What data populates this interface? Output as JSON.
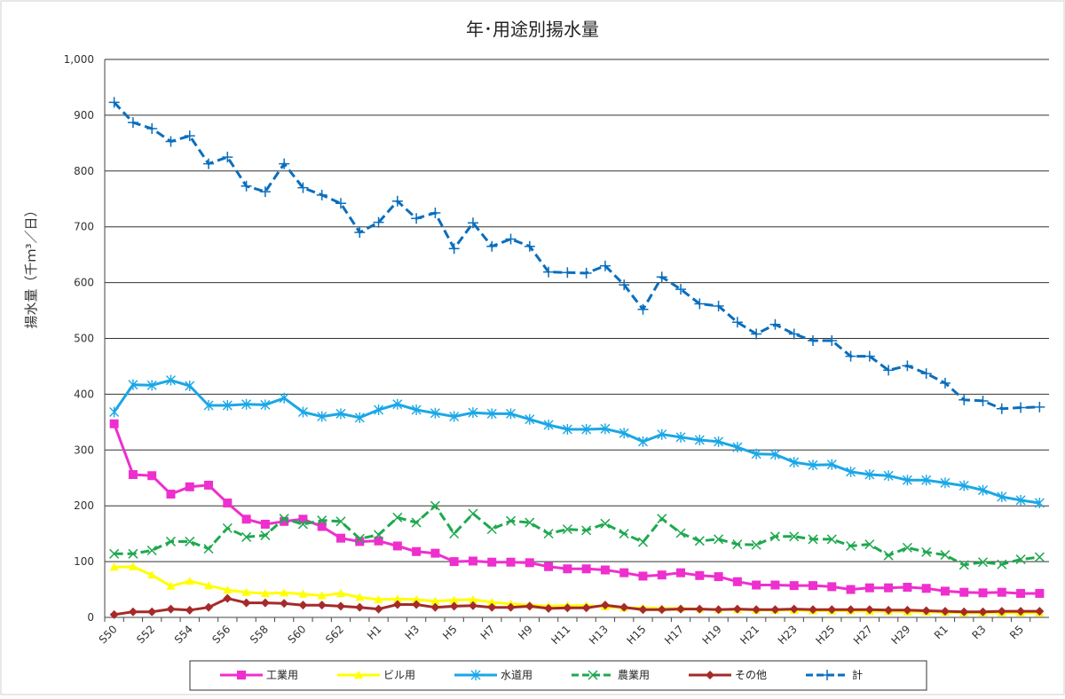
{
  "chart_data": {
    "type": "line",
    "title": "年･用途別揚水量",
    "ylabel": "揚水量（千ｍ³／日）",
    "ylim": [
      0,
      1000
    ],
    "yticks": [
      0,
      100,
      200,
      300,
      400,
      500,
      600,
      700,
      800,
      900,
      1000
    ],
    "ytick_labels": [
      "0",
      "100",
      "200",
      "300",
      "400",
      "500",
      "600",
      "700",
      "800",
      "900",
      "1,000"
    ],
    "grid": true,
    "legend_position": "bottom",
    "categories": [
      "S50",
      "S51",
      "S52",
      "S53",
      "S54",
      "S55",
      "S56",
      "S57",
      "S58",
      "S59",
      "S60",
      "S61",
      "S62",
      "S63",
      "H1",
      "H2",
      "H3",
      "H4",
      "H5",
      "H6",
      "H7",
      "H8",
      "H9",
      "H10",
      "H11",
      "H12",
      "H13",
      "H14",
      "H15",
      "H16",
      "H17",
      "H18",
      "H19",
      "H20",
      "H21",
      "H22",
      "H23",
      "H24",
      "H25",
      "H26",
      "H27",
      "H28",
      "H29",
      "H30",
      "R1",
      "R2",
      "R3",
      "R4",
      "R5",
      "R6"
    ],
    "tick_labels": [
      "S50",
      "S52",
      "S54",
      "S56",
      "S58",
      "S60",
      "S62",
      "H1",
      "H3",
      "H5",
      "H7",
      "H9",
      "H11",
      "H13",
      "H15",
      "H17",
      "H19",
      "H21",
      "H23",
      "H25",
      "H27",
      "H29",
      "R1",
      "R3",
      "R5"
    ],
    "series": [
      {
        "name": "工業用",
        "color": "#ee2fce",
        "marker": "square",
        "dash": "solid",
        "values": [
          347,
          256,
          254,
          221,
          234,
          237,
          205,
          176,
          167,
          172,
          176,
          163,
          142,
          136,
          137,
          128,
          118,
          115,
          100,
          101,
          99,
          99,
          98,
          91,
          87,
          87,
          85,
          80,
          74,
          76,
          80,
          75,
          73,
          64,
          58,
          58,
          57,
          57,
          55,
          50,
          53,
          53,
          54,
          52,
          47,
          45,
          44,
          45,
          43,
          43
        ]
      },
      {
        "name": "ビル用",
        "color": "#ffff00",
        "marker": "triangle",
        "dash": "solid",
        "values": [
          90,
          91,
          76,
          56,
          65,
          57,
          49,
          45,
          43,
          44,
          42,
          39,
          43,
          36,
          32,
          33,
          32,
          29,
          31,
          32,
          27,
          24,
          22,
          20,
          21,
          21,
          19,
          17,
          17,
          16,
          16,
          15,
          14,
          14,
          13,
          13,
          13,
          12,
          12,
          12,
          11,
          11,
          10,
          10,
          9,
          8,
          8,
          8,
          8,
          8
        ]
      },
      {
        "name": "水道用",
        "color": "#1aa7e6",
        "marker": "asterisk",
        "dash": "solid",
        "values": [
          368,
          417,
          416,
          425,
          415,
          380,
          380,
          382,
          381,
          393,
          368,
          360,
          365,
          358,
          372,
          382,
          372,
          366,
          360,
          367,
          365,
          365,
          355,
          345,
          337,
          337,
          338,
          330,
          315,
          328,
          323,
          318,
          315,
          305,
          293,
          292,
          278,
          273,
          274,
          261,
          256,
          254,
          246,
          246,
          241,
          236,
          228,
          216,
          210,
          205
        ]
      },
      {
        "name": "農業用",
        "color": "#1fa84f",
        "marker": "x",
        "dash": "dashed",
        "values": [
          114,
          114,
          120,
          136,
          136,
          123,
          160,
          144,
          147,
          177,
          167,
          174,
          172,
          141,
          148,
          179,
          170,
          200,
          150,
          186,
          158,
          173,
          170,
          150,
          158,
          156,
          168,
          150,
          135,
          177,
          151,
          137,
          140,
          131,
          130,
          145,
          145,
          140,
          140,
          128,
          131,
          111,
          125,
          117,
          112,
          94,
          99,
          95,
          104,
          108
        ]
      },
      {
        "name": "その他",
        "color": "#a52a2a",
        "marker": "diamond",
        "dash": "solid",
        "values": [
          5,
          10,
          10,
          15,
          13,
          18,
          34,
          26,
          26,
          25,
          22,
          22,
          20,
          18,
          15,
          23,
          23,
          18,
          20,
          21,
          18,
          18,
          20,
          16,
          17,
          17,
          22,
          18,
          14,
          14,
          15,
          15,
          14,
          15,
          14,
          14,
          15,
          14,
          14,
          14,
          14,
          13,
          13,
          12,
          11,
          10,
          10,
          11,
          11,
          11
        ]
      },
      {
        "name": "計",
        "color": "#0a6ebd",
        "marker": "plus",
        "dash": "dashed",
        "values": [
          923,
          887,
          876,
          853,
          863,
          813,
          825,
          773,
          763,
          813,
          770,
          757,
          742,
          690,
          708,
          746,
          715,
          725,
          661,
          707,
          665,
          678,
          665,
          619,
          618,
          617,
          630,
          596,
          552,
          610,
          588,
          562,
          558,
          529,
          508,
          525,
          508,
          496,
          496,
          468,
          468,
          443,
          451,
          437,
          420,
          390,
          388,
          374,
          376,
          377
        ]
      }
    ]
  }
}
